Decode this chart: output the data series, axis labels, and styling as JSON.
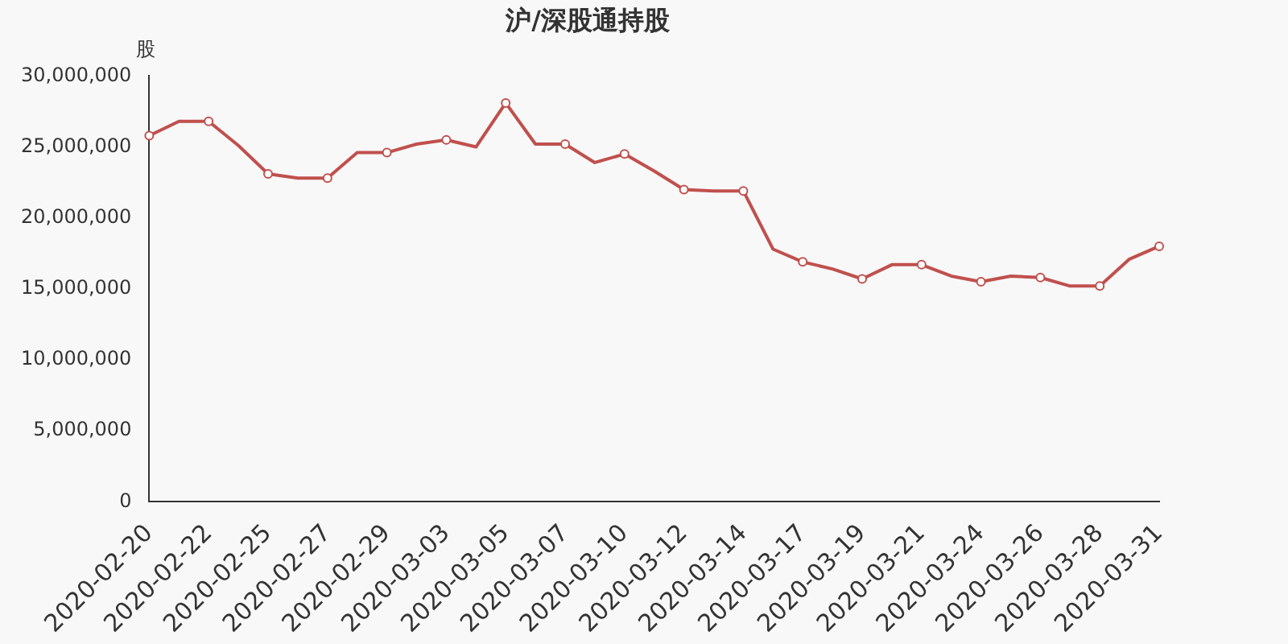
{
  "chart_data": {
    "type": "line",
    "title": "沪/深股通持股",
    "ylabel": "股",
    "categories": [
      "2020-02-20",
      null,
      "2020-02-22",
      null,
      "2020-02-25",
      null,
      "2020-02-27",
      null,
      "2020-02-29",
      null,
      "2020-03-03",
      null,
      "2020-03-05",
      null,
      "2020-03-07",
      null,
      "2020-03-10",
      null,
      "2020-03-12",
      null,
      "2020-03-14",
      null,
      "2020-03-17",
      null,
      "2020-03-19",
      null,
      "2020-03-21",
      null,
      "2020-03-24",
      null,
      "2020-03-26",
      null,
      "2020-03-28",
      null,
      "2020-03-31"
    ],
    "series": [
      {
        "color": "#c0504d",
        "values": [
          25800000,
          26800000,
          26800000,
          25100000,
          23100000,
          22800000,
          22800000,
          24600000,
          24600000,
          25200000,
          25500000,
          25000000,
          28100000,
          25200000,
          25200000,
          23900000,
          24500000,
          23300000,
          22000000,
          21900000,
          21900000,
          17800000,
          16900000,
          16400000,
          15700000,
          16700000,
          16700000,
          15900000,
          15500000,
          15900000,
          15800000,
          15200000,
          15200000,
          17100000,
          18000000
        ]
      }
    ],
    "ylim": [
      0,
      30000000
    ],
    "yticks": [
      0,
      {
        "value": 5000000,
        "label": "5,000,000"
      },
      {
        "value": 10000000,
        "label": "10,000,000"
      },
      {
        "value": 15000000,
        "label": "15,000,000"
      },
      {
        "value": 20000000,
        "label": "20,000,000"
      },
      {
        "value": 25000000,
        "label": "25,000,000"
      },
      {
        "value": 30000000,
        "label": "30,000,000"
      }
    ],
    "grid": false,
    "legend": false,
    "marker": "circle",
    "line_style": "solid"
  }
}
